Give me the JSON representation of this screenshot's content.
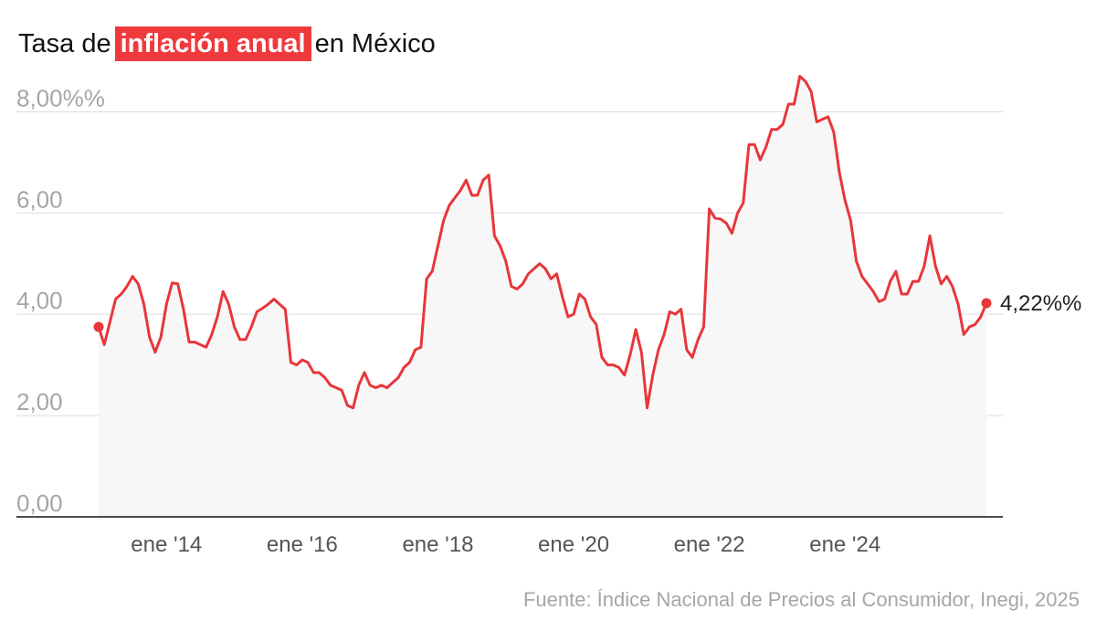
{
  "title": {
    "before": "Tasa de",
    "highlight": "inflación anual",
    "after": "en México"
  },
  "source": "Fuente: Índice Nacional de Precios al Consumidor, Inegi, 2025",
  "colors": {
    "line": "#e8363b",
    "highlight_bg": "#f0393c",
    "area": "#f7f7f7",
    "grid": "#dcdcdc"
  },
  "chart_data": {
    "type": "line",
    "title": "",
    "xlabel": "",
    "ylabel": "",
    "ylim": [
      0,
      8.8
    ],
    "yticks": [
      0,
      2,
      4,
      6,
      8
    ],
    "ytick_labels": [
      "0,00",
      "2,00",
      "4,00",
      "6,00",
      "8,00%%"
    ],
    "grid": true,
    "xtick_labels": [
      "ene '14",
      "ene '16",
      "ene '18",
      "ene '20",
      "ene '22",
      "ene '24"
    ],
    "xtick_months": [
      12,
      36,
      60,
      84,
      108,
      132
    ],
    "x_start": "2013-01",
    "end_label": "4,22%%",
    "series": [
      {
        "values": [
          3.75,
          3.4,
          3.85,
          4.3,
          4.4,
          4.55,
          4.75,
          4.6,
          4.2,
          3.55,
          3.25,
          3.55,
          4.2,
          4.62,
          4.6,
          4.1,
          3.45,
          3.45,
          3.4,
          3.35,
          3.6,
          3.95,
          4.45,
          4.2,
          3.75,
          3.5,
          3.5,
          3.75,
          4.05,
          4.12,
          4.2,
          4.3,
          4.2,
          4.1,
          3.05,
          3.0,
          3.1,
          3.05,
          2.85,
          2.85,
          2.75,
          2.6,
          2.55,
          2.5,
          2.2,
          2.15,
          2.6,
          2.85,
          2.6,
          2.55,
          2.6,
          2.55,
          2.65,
          2.75,
          2.95,
          3.05,
          3.3,
          3.35,
          4.7,
          4.85,
          5.35,
          5.85,
          6.15,
          6.3,
          6.45,
          6.65,
          6.35,
          6.35,
          6.65,
          6.75,
          5.55,
          5.35,
          5.05,
          4.55,
          4.5,
          4.6,
          4.8,
          4.9,
          5.0,
          4.9,
          4.7,
          4.8,
          4.35,
          3.95,
          4.0,
          4.4,
          4.3,
          3.95,
          3.8,
          3.15,
          3.0,
          3.0,
          2.95,
          2.8,
          3.2,
          3.7,
          3.25,
          2.15,
          2.8,
          3.3,
          3.6,
          4.05,
          4.0,
          4.1,
          3.3,
          3.15,
          3.5,
          3.75,
          6.08,
          5.9,
          5.88,
          5.8,
          5.6,
          6.0,
          6.2,
          7.35,
          7.35,
          7.05,
          7.3,
          7.65,
          7.65,
          7.75,
          8.15,
          8.15,
          8.7,
          8.6,
          8.4,
          7.8,
          7.85,
          7.9,
          7.6,
          6.8,
          6.25,
          5.85,
          5.05,
          4.75,
          4.6,
          4.45,
          4.25,
          4.3,
          4.65,
          4.85,
          4.4,
          4.4,
          4.65,
          4.65,
          4.95,
          5.55,
          4.95,
          4.6,
          4.75,
          4.55,
          4.2,
          3.6,
          3.75,
          3.8,
          3.95,
          4.22
        ]
      }
    ]
  }
}
